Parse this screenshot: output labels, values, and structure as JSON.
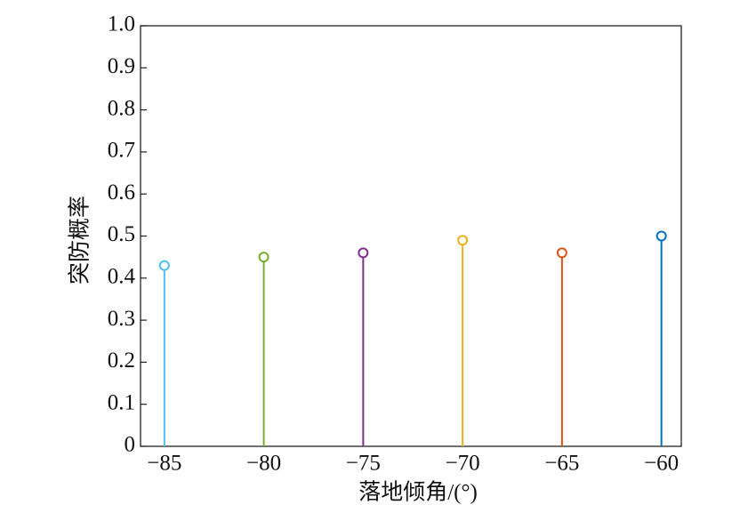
{
  "chart_data": {
    "type": "stem",
    "x_label": "落地倾角/(°)",
    "y_label": "突防概率",
    "x": [
      -85,
      -80,
      -75,
      -70,
      -65,
      -60
    ],
    "values": [
      0.43,
      0.45,
      0.46,
      0.49,
      0.46,
      0.5
    ],
    "colors": [
      "#4dbeee",
      "#77ac30",
      "#7e2f8e",
      "#edb120",
      "#d95319",
      "#0072bd"
    ],
    "xlim": [
      -86.2,
      -59
    ],
    "xticks": [
      {
        "value": -85,
        "label": "−85"
      },
      {
        "value": -80,
        "label": "−80"
      },
      {
        "value": -75,
        "label": "−75"
      },
      {
        "value": -70,
        "label": "−70"
      },
      {
        "value": -65,
        "label": "−65"
      },
      {
        "value": -60,
        "label": "−60"
      }
    ],
    "ylim": [
      0,
      1
    ],
    "yticks": [
      0,
      0.1,
      0.2,
      0.3,
      0.4,
      0.5,
      0.6,
      0.7,
      0.8,
      0.9,
      {
        "value": 1,
        "label": "1.0"
      }
    ]
  }
}
